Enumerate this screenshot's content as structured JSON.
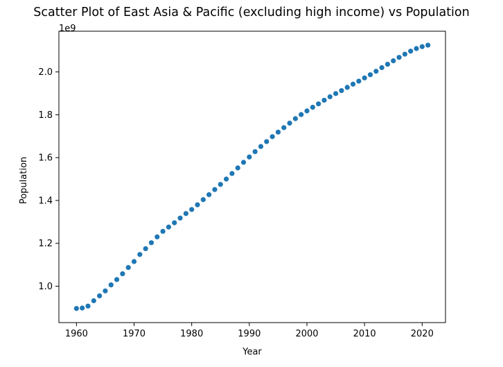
{
  "chart_data": {
    "type": "scatter",
    "title": "Scatter Plot of East Asia & Pacific (excluding high income) vs Population",
    "xlabel": "Year",
    "ylabel": "Population",
    "y_offset_label": "1e9",
    "xlim": [
      1956.95,
      2024.05
    ],
    "ylim": [
      830000000.0,
      2190000000.0
    ],
    "x_ticks": [
      1960,
      1970,
      1980,
      1990,
      2000,
      2010,
      2020
    ],
    "x_tick_labels": [
      "1960",
      "1970",
      "1980",
      "1990",
      "2000",
      "2010",
      "2020"
    ],
    "y_ticks": [
      1000000000.0,
      1200000000.0,
      1400000000.0,
      1600000000.0,
      1800000000.0,
      2000000000.0
    ],
    "y_tick_labels": [
      "1.0",
      "1.2",
      "1.4",
      "1.6",
      "1.8",
      "2.0"
    ],
    "grid": false,
    "marker_color": "#1f77b4",
    "series": [
      {
        "x": [
          1960,
          1961,
          1962,
          1963,
          1964,
          1965,
          1966,
          1967,
          1968,
          1969,
          1970,
          1971,
          1972,
          1973,
          1974,
          1975,
          1976,
          1977,
          1978,
          1979,
          1980,
          1981,
          1982,
          1983,
          1984,
          1985,
          1986,
          1987,
          1988,
          1989,
          1990,
          1991,
          1992,
          1993,
          1994,
          1995,
          1996,
          1997,
          1998,
          1999,
          2000,
          2001,
          2002,
          2003,
          2004,
          2005,
          2006,
          2007,
          2008,
          2009,
          2010,
          2011,
          2012,
          2013,
          2014,
          2015,
          2016,
          2017,
          2018,
          2019,
          2020,
          2021
        ],
        "y": [
          896000000,
          898000000,
          907000000,
          932000000,
          955000000,
          978000000,
          1006000000,
          1031000000,
          1058000000,
          1087000000,
          1115000000,
          1148000000,
          1175000000,
          1203000000,
          1230000000,
          1256000000,
          1276000000,
          1296000000,
          1318000000,
          1339000000,
          1358000000,
          1380000000,
          1404000000,
          1427000000,
          1451000000,
          1475000000,
          1500000000,
          1526000000,
          1552000000,
          1578000000,
          1603000000,
          1628000000,
          1652000000,
          1675000000,
          1698000000,
          1719000000,
          1740000000,
          1761000000,
          1782000000,
          1801000000,
          1818000000,
          1835000000,
          1851000000,
          1868000000,
          1884000000,
          1899000000,
          1913000000,
          1928000000,
          1943000000,
          1957000000,
          1972000000,
          1987000000,
          2003000000,
          2020000000,
          2036000000,
          2052000000,
          2068000000,
          2083000000,
          2097000000,
          2109000000,
          2118000000,
          2125000000
        ]
      }
    ]
  }
}
